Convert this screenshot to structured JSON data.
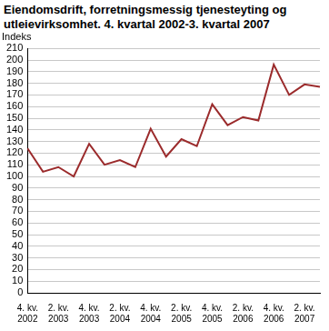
{
  "chart_data": {
    "type": "line",
    "title": "Eiendomsdrift, forretningsmessig tjenesteyting og utleievirksomhet. 4. kvartal 2002-3. kvartal 2007",
    "y_label": "Indeks",
    "categories": [
      "4. kv. 2002",
      null,
      "2. kv. 2003",
      null,
      "4. kv. 2003",
      null,
      "2. kv. 2004",
      null,
      "4. kv. 2004",
      null,
      "2. kv. 2005",
      null,
      "4. kv. 2005",
      null,
      "2. kv. 2006",
      null,
      "4. kv. 2006",
      null,
      "2. kv. 2007",
      null
    ],
    "values": [
      124,
      104,
      108,
      100,
      128,
      110,
      114,
      108,
      141,
      117,
      132,
      126,
      162,
      144,
      151,
      148,
      196,
      170,
      179,
      177
    ],
    "color": "#9b2b2c",
    "marker": "none",
    "ylim": [
      0,
      210
    ],
    "yticks": [
      0,
      10,
      20,
      30,
      40,
      50,
      60,
      70,
      80,
      90,
      100,
      110,
      120,
      130,
      140,
      150,
      160,
      170,
      180,
      190,
      200,
      210
    ],
    "grid": true
  }
}
